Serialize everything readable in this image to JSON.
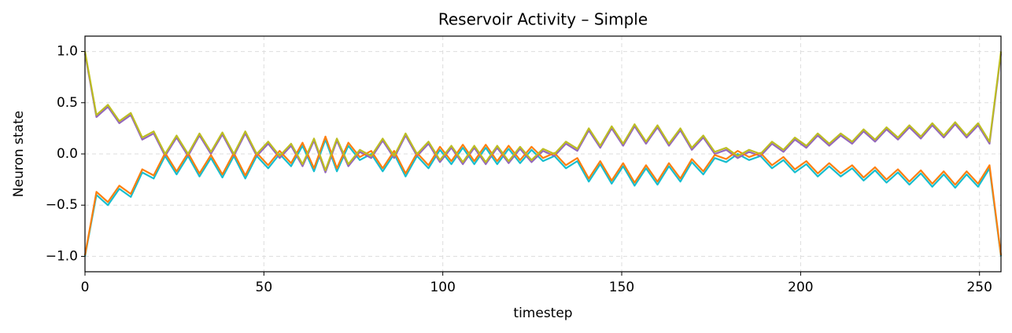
{
  "chart_data": {
    "type": "line",
    "title": "Reservoir Activity – Simple",
    "xlabel": "timestep",
    "ylabel": "Neuron state",
    "xlim": [
      0,
      256
    ],
    "ylim": [
      -1.15,
      1.15
    ],
    "xticks": [
      0,
      50,
      100,
      150,
      200,
      250
    ],
    "yticks": [
      {
        "value": -1.0,
        "label": "−1.0"
      },
      {
        "value": -0.5,
        "label": "−0.5"
      },
      {
        "value": 0.0,
        "label": "0.0"
      },
      0.5,
      {
        "value": 1.0,
        "label": "1.0"
      }
    ],
    "grid": true,
    "x": [
      0,
      3.2,
      6.4,
      9.6,
      12.8,
      16,
      19.2,
      22.4,
      25.6,
      28.8,
      32,
      35.2,
      38.4,
      41.6,
      44.8,
      48,
      51.2,
      54.4,
      57.6,
      60.8,
      64,
      67.2,
      70.4,
      73.6,
      76.8,
      80,
      83.2,
      86.4,
      89.6,
      92.8,
      96,
      99.2,
      102.4,
      105.6,
      108.8,
      112,
      115.2,
      118.4,
      121.6,
      124.8,
      128,
      131.2,
      134.4,
      137.6,
      140.8,
      144,
      147.2,
      150.4,
      153.6,
      156.8,
      160,
      163.2,
      166.4,
      169.6,
      172.8,
      176,
      179.2,
      182.4,
      185.6,
      188.8,
      192,
      195.2,
      198.4,
      201.6,
      204.8,
      208,
      211.2,
      214.4,
      217.6,
      220.8,
      224,
      227.2,
      230.4,
      233.6,
      236.8,
      240,
      243.2,
      246.4,
      249.6,
      252.8,
      256
    ],
    "series": [
      {
        "color": "#17becf",
        "values": [
          -1.0,
          -0.4,
          -0.5,
          -0.34,
          -0.42,
          -0.18,
          -0.24,
          -0.02,
          -0.2,
          -0.02,
          -0.22,
          -0.04,
          -0.23,
          -0.02,
          -0.24,
          -0.02,
          -0.14,
          0.0,
          -0.12,
          0.08,
          -0.17,
          0.14,
          -0.17,
          0.08,
          -0.06,
          0.0,
          -0.17,
          0.0,
          -0.22,
          -0.02,
          -0.14,
          0.04,
          -0.1,
          0.06,
          -0.1,
          0.06,
          -0.1,
          0.05,
          -0.09,
          0.04,
          -0.07,
          -0.02,
          -0.14,
          -0.07,
          -0.27,
          -0.1,
          -0.29,
          -0.12,
          -0.31,
          -0.14,
          -0.3,
          -0.12,
          -0.27,
          -0.08,
          -0.2,
          -0.04,
          -0.08,
          0.0,
          -0.06,
          -0.02,
          -0.14,
          -0.06,
          -0.18,
          -0.1,
          -0.22,
          -0.12,
          -0.22,
          -0.14,
          -0.26,
          -0.16,
          -0.28,
          -0.18,
          -0.3,
          -0.19,
          -0.32,
          -0.2,
          -0.33,
          -0.2,
          -0.32,
          -0.14,
          -1.0
        ]
      },
      {
        "color": "#9467bd",
        "values": [
          0.98,
          0.36,
          0.46,
          0.3,
          0.38,
          0.14,
          0.2,
          -0.02,
          0.16,
          -0.02,
          0.18,
          0.0,
          0.19,
          -0.02,
          0.2,
          -0.02,
          0.1,
          -0.04,
          0.08,
          -0.12,
          0.13,
          -0.18,
          0.13,
          -0.12,
          0.02,
          -0.04,
          0.13,
          -0.04,
          0.18,
          -0.02,
          0.1,
          -0.08,
          0.06,
          -0.1,
          0.06,
          -0.1,
          0.06,
          -0.09,
          0.05,
          -0.08,
          0.03,
          -0.02,
          0.1,
          0.03,
          0.23,
          0.06,
          0.25,
          0.08,
          0.27,
          0.1,
          0.26,
          0.08,
          0.23,
          0.04,
          0.16,
          0.0,
          0.04,
          -0.04,
          0.02,
          -0.02,
          0.1,
          0.02,
          0.14,
          0.06,
          0.18,
          0.08,
          0.18,
          0.1,
          0.22,
          0.12,
          0.24,
          0.14,
          0.26,
          0.15,
          0.28,
          0.16,
          0.29,
          0.16,
          0.28,
          0.1,
          0.98
        ]
      },
      {
        "color": "#ff7f0e",
        "values": [
          -0.99,
          -0.37,
          -0.47,
          -0.31,
          -0.39,
          -0.15,
          -0.21,
          0.01,
          -0.17,
          0.01,
          -0.19,
          -0.01,
          -0.2,
          0.01,
          -0.21,
          0.01,
          -0.11,
          0.03,
          -0.09,
          0.11,
          -0.14,
          0.17,
          -0.14,
          0.11,
          -0.03,
          0.03,
          -0.14,
          0.03,
          -0.19,
          0.01,
          -0.11,
          0.07,
          -0.07,
          0.09,
          -0.07,
          0.09,
          -0.07,
          0.08,
          -0.06,
          0.07,
          -0.04,
          0.01,
          -0.11,
          -0.04,
          -0.24,
          -0.07,
          -0.26,
          -0.09,
          -0.28,
          -0.11,
          -0.27,
          -0.09,
          -0.24,
          -0.05,
          -0.17,
          -0.01,
          -0.05,
          0.03,
          -0.03,
          0.01,
          -0.11,
          -0.03,
          -0.15,
          -0.07,
          -0.19,
          -0.09,
          -0.19,
          -0.11,
          -0.23,
          -0.13,
          -0.25,
          -0.15,
          -0.27,
          -0.16,
          -0.29,
          -0.17,
          -0.3,
          -0.17,
          -0.29,
          -0.11,
          -0.99
        ]
      },
      {
        "color": "#bcbd22",
        "values": [
          1.0,
          0.38,
          0.48,
          0.32,
          0.4,
          0.16,
          0.22,
          0.0,
          0.18,
          0.0,
          0.2,
          0.02,
          0.21,
          0.0,
          0.22,
          0.0,
          0.12,
          -0.02,
          0.1,
          -0.1,
          0.15,
          -0.16,
          0.15,
          -0.1,
          0.04,
          -0.02,
          0.15,
          -0.02,
          0.2,
          0.0,
          0.12,
          -0.06,
          0.08,
          -0.08,
          0.08,
          -0.08,
          0.08,
          -0.07,
          0.07,
          -0.06,
          0.05,
          0.0,
          0.12,
          0.05,
          0.25,
          0.08,
          0.27,
          0.1,
          0.29,
          0.12,
          0.28,
          0.1,
          0.25,
          0.06,
          0.18,
          0.02,
          0.06,
          -0.02,
          0.04,
          0.0,
          0.12,
          0.04,
          0.16,
          0.08,
          0.2,
          0.1,
          0.2,
          0.12,
          0.24,
          0.14,
          0.26,
          0.16,
          0.28,
          0.17,
          0.3,
          0.18,
          0.31,
          0.18,
          0.3,
          0.12,
          1.0
        ]
      }
    ]
  }
}
